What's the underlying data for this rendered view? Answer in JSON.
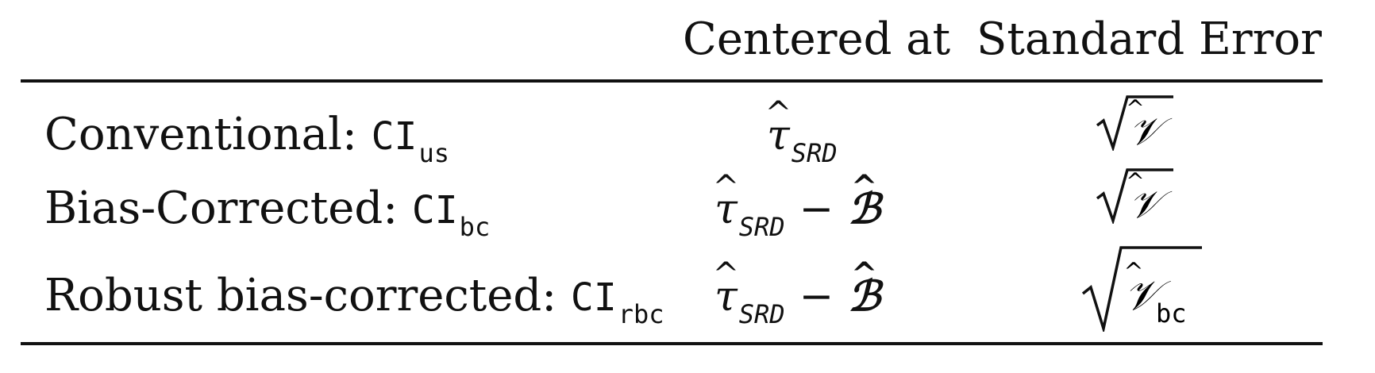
{
  "table": {
    "headers": {
      "centered_at": "Centered at",
      "standard_error": "Standard Error"
    },
    "rows": [
      {
        "label": "Conventional: ",
        "ci_symbol": "CI",
        "ci_sub": "us",
        "center_tau": "τ",
        "center_tau_sub": "SRD",
        "center_minus": "",
        "center_bias": "",
        "se_symbol": "𝒱",
        "se_sub": ""
      },
      {
        "label": "Bias-Corrected: ",
        "ci_symbol": "CI",
        "ci_sub": "bc",
        "center_tau": "τ",
        "center_tau_sub": "SRD",
        "center_minus": "−",
        "center_bias": "ℬ",
        "se_symbol": "𝒱",
        "se_sub": ""
      },
      {
        "label": "Robust bias-corrected: ",
        "ci_symbol": "CI",
        "ci_sub": "rbc",
        "center_tau": "τ",
        "center_tau_sub": "SRD",
        "center_minus": "−",
        "center_bias": "ℬ",
        "se_symbol": "𝒱",
        "se_sub": "bc"
      }
    ],
    "hat_glyph": "^"
  }
}
